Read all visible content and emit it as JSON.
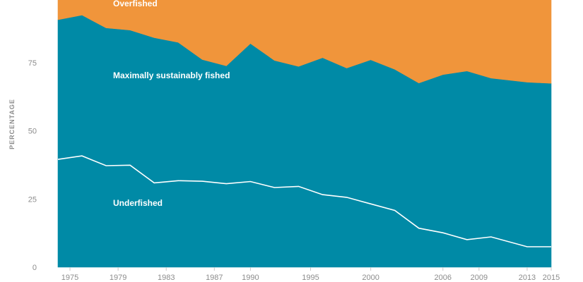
{
  "chart_data": {
    "type": "area",
    "ylabel": "PERCENTAGE",
    "ylim": [
      0,
      100
    ],
    "y_ticks": [
      0,
      25,
      50,
      75
    ],
    "x_ticks": [
      1975,
      1979,
      1983,
      1987,
      1990,
      1995,
      2000,
      2006,
      2009,
      2013,
      2015
    ],
    "x_tick_labels": [
      "1975",
      "1979",
      "1983",
      "1987",
      "1990",
      "1995",
      "2000",
      "2006",
      "2009",
      "2013",
      "2015"
    ],
    "x": [
      1974,
      1976,
      1978,
      1980,
      1982,
      1984,
      1986,
      1988,
      1990,
      1992,
      1994,
      1996,
      1998,
      2000,
      2002,
      2004,
      2006,
      2008,
      2010,
      2013,
      2015
    ],
    "stacked": true,
    "grid": false,
    "series": [
      {
        "name": "Underfished",
        "color": "#008aa6",
        "values": [
          39.5,
          40.8,
          37.2,
          37.4,
          30.9,
          31.7,
          31.5,
          30.6,
          31.4,
          29.2,
          29.6,
          26.6,
          25.6,
          23.2,
          20.8,
          14.3,
          12.6,
          10.1,
          11.1,
          7.5,
          7.5
        ]
      },
      {
        "name": "Maximally sustainably fished",
        "color": "#008aa6",
        "values": [
          51.2,
          51.6,
          50.5,
          49.5,
          53.2,
          50.7,
          44.6,
          43.2,
          50.6,
          46.6,
          44.0,
          50.2,
          47.4,
          52.8,
          51.7,
          53.2,
          58.0,
          61.8,
          58.2,
          60.3,
          59.9
        ]
      },
      {
        "name": "Overfished",
        "color": "#f0953b",
        "values": [
          9.3,
          7.6,
          12.3,
          13.1,
          15.9,
          17.6,
          23.9,
          26.2,
          18.0,
          24.2,
          26.4,
          23.2,
          27.0,
          24.0,
          27.5,
          32.5,
          29.4,
          28.1,
          30.7,
          32.2,
          32.6
        ]
      }
    ],
    "boundary_line": "Underfished"
  }
}
